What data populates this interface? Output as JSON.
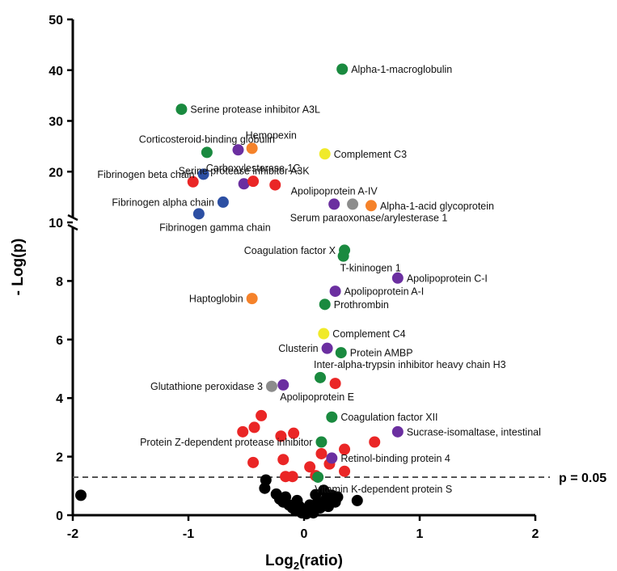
{
  "chart_data": {
    "type": "scatter",
    "xlabel": "Log",
    "xlabel_sub": "2",
    "xlabel_rest": "(ratio)",
    "ylabel": "- Log(p)",
    "xlim": [
      -2,
      2
    ],
    "xticks": [
      "-2",
      "-1",
      "0",
      "1",
      "2"
    ],
    "ylim_lower": [
      0,
      10
    ],
    "ylim_upper": [
      10,
      50
    ],
    "y_axis_break_at": 10,
    "yticks_lower": [
      "0",
      "2",
      "4",
      "6",
      "8",
      "10"
    ],
    "yticks_upper": [
      "20",
      "30",
      "40",
      "50"
    ],
    "threshold": {
      "y": 1.3,
      "label": "p = 0.05",
      "style": "dashed"
    },
    "grid": false,
    "colors": {
      "green": "#1a8a3f",
      "purple": "#6b2fa0",
      "orange": "#f5822a",
      "yellow": "#f0ea2a",
      "gray": "#8c8c8c",
      "blue": "#2c4fa3",
      "red": "#ea2626",
      "black": "#000000"
    },
    "labeled_points": [
      {
        "label": "Alpha-1-macroglobulin",
        "x": 0.33,
        "y": 40.2,
        "color": "green",
        "anchor": "right"
      },
      {
        "label": "Serine protease inhibitor A3L",
        "x": -1.06,
        "y": 32.3,
        "color": "green",
        "anchor": "right"
      },
      {
        "label": "Corticosteroid-binding globulin",
        "x": -0.84,
        "y": 23.8,
        "color": "green",
        "anchor": "above"
      },
      {
        "label": "",
        "x": -0.57,
        "y": 24.3,
        "color": "purple",
        "anchor": "none"
      },
      {
        "label": "Hemopexin",
        "x": -0.45,
        "y": 24.6,
        "color": "orange",
        "anchor": "above-right"
      },
      {
        "label": "Complement C3",
        "x": 0.18,
        "y": 23.5,
        "color": "yellow",
        "anchor": "right"
      },
      {
        "label": "Serine protease inhibitor A3K",
        "x": -0.52,
        "y": 17.6,
        "color": "purple",
        "anchor": "above"
      },
      {
        "label": "Fibrinogen beta chain",
        "x": -0.87,
        "y": 19.5,
        "color": "blue",
        "anchor": "left"
      },
      {
        "label": "Carboxylesterase 1C",
        "x": -0.44,
        "y": 18.1,
        "color": "red",
        "anchor": "above"
      },
      {
        "label": "",
        "x": -0.96,
        "y": 18.0,
        "color": "red",
        "anchor": "none"
      },
      {
        "label": "",
        "x": -0.25,
        "y": 17.4,
        "color": "red",
        "anchor": "none"
      },
      {
        "label": "Fibrinogen alpha chain",
        "x": -0.7,
        "y": 14.0,
        "color": "blue",
        "anchor": "left"
      },
      {
        "label": "Fibrinogen gamma chain",
        "x": -0.91,
        "y": 11.7,
        "color": "blue",
        "anchor": "below"
      },
      {
        "label": "Apolipoprotein A-IV",
        "x": 0.26,
        "y": 13.6,
        "color": "purple",
        "anchor": "above"
      },
      {
        "label": "Serum paraoxonase/arylesterase 1",
        "x": 0.42,
        "y": 13.6,
        "color": "gray",
        "anchor": "below"
      },
      {
        "label": "Alpha-1-acid glycoprotein",
        "x": 0.58,
        "y": 13.3,
        "color": "orange",
        "anchor": "right"
      },
      {
        "label": "Coagulation factor X",
        "x": 0.35,
        "y": 9.05,
        "color": "green",
        "anchor": "left"
      },
      {
        "label": "T-kininogen 1",
        "x": 0.34,
        "y": 8.85,
        "color": "green",
        "anchor": "below-right"
      },
      {
        "label": "Apolipoprotein C-I",
        "x": 0.81,
        "y": 8.1,
        "color": "purple",
        "anchor": "right"
      },
      {
        "label": "Apolipoprotein A-I",
        "x": 0.27,
        "y": 7.65,
        "color": "purple",
        "anchor": "right"
      },
      {
        "label": "Haptoglobin",
        "x": -0.45,
        "y": 7.4,
        "color": "orange",
        "anchor": "left"
      },
      {
        "label": "Prothrombin",
        "x": 0.18,
        "y": 7.2,
        "color": "green",
        "anchor": "right"
      },
      {
        "label": "Complement C4",
        "x": 0.17,
        "y": 6.2,
        "color": "yellow",
        "anchor": "right"
      },
      {
        "label": "Clusterin",
        "x": 0.2,
        "y": 5.7,
        "color": "purple",
        "anchor": "left"
      },
      {
        "label": "Protein AMBP",
        "x": 0.32,
        "y": 5.55,
        "color": "green",
        "anchor": "right"
      },
      {
        "label": "Inter-alpha-trypsin inhibitor heavy chain H3",
        "x": 0.14,
        "y": 4.7,
        "color": "green",
        "anchor": "above-right"
      },
      {
        "label": "",
        "x": 0.27,
        "y": 4.5,
        "color": "red",
        "anchor": "none"
      },
      {
        "label": "Glutathione peroxidase 3",
        "x": -0.28,
        "y": 4.4,
        "color": "gray",
        "anchor": "left"
      },
      {
        "label": "Apolipoprotein E",
        "x": -0.18,
        "y": 4.45,
        "color": "purple",
        "anchor": "below-right"
      },
      {
        "label": "Coagulation factor XII",
        "x": 0.24,
        "y": 3.35,
        "color": "green",
        "anchor": "right"
      },
      {
        "label": "Sucrase-isomaltase, intestinal",
        "x": 0.81,
        "y": 2.85,
        "color": "purple",
        "anchor": "right"
      },
      {
        "label": "Protein Z-dependent protease inhibitor",
        "x": 0.15,
        "y": 2.5,
        "color": "green",
        "anchor": "left"
      },
      {
        "label": "Retinol-binding protein 4",
        "x": 0.24,
        "y": 1.95,
        "color": "purple",
        "anchor": "right"
      },
      {
        "label": "Vitamin K-dependent protein S",
        "x": 0.12,
        "y": 1.3,
        "color": "green",
        "anchor": "below-right"
      }
    ],
    "unlabeled_points": [
      {
        "x": -0.37,
        "y": 3.4,
        "color": "red"
      },
      {
        "x": -0.43,
        "y": 3.0,
        "color": "red"
      },
      {
        "x": -0.53,
        "y": 2.85,
        "color": "red"
      },
      {
        "x": -0.2,
        "y": 2.7,
        "color": "red"
      },
      {
        "x": -0.09,
        "y": 2.8,
        "color": "red"
      },
      {
        "x": 0.35,
        "y": 2.25,
        "color": "red"
      },
      {
        "x": 0.61,
        "y": 2.5,
        "color": "red"
      },
      {
        "x": 0.15,
        "y": 2.1,
        "color": "red"
      },
      {
        "x": -0.44,
        "y": 1.8,
        "color": "red"
      },
      {
        "x": -0.18,
        "y": 1.9,
        "color": "red"
      },
      {
        "x": 0.05,
        "y": 1.65,
        "color": "red"
      },
      {
        "x": 0.35,
        "y": 1.5,
        "color": "red"
      },
      {
        "x": -0.16,
        "y": 1.32,
        "color": "red"
      },
      {
        "x": -0.1,
        "y": 1.32,
        "color": "red"
      },
      {
        "x": 0.1,
        "y": 1.35,
        "color": "red"
      },
      {
        "x": 0.22,
        "y": 1.75,
        "color": "red"
      },
      {
        "x": -1.93,
        "y": 0.68,
        "color": "black"
      },
      {
        "x": -0.33,
        "y": 1.2,
        "color": "black"
      },
      {
        "x": -0.34,
        "y": 0.92,
        "color": "black"
      },
      {
        "x": 0.46,
        "y": 0.5,
        "color": "black"
      },
      {
        "x": -0.24,
        "y": 0.72,
        "color": "black"
      },
      {
        "x": -0.21,
        "y": 0.55,
        "color": "black"
      },
      {
        "x": -0.18,
        "y": 0.45,
        "color": "black"
      },
      {
        "x": -0.16,
        "y": 0.62,
        "color": "black"
      },
      {
        "x": -0.13,
        "y": 0.35,
        "color": "black"
      },
      {
        "x": -0.1,
        "y": 0.25,
        "color": "black"
      },
      {
        "x": -0.07,
        "y": 0.15,
        "color": "black"
      },
      {
        "x": -0.04,
        "y": 0.3,
        "color": "black"
      },
      {
        "x": -0.02,
        "y": 0.08,
        "color": "black"
      },
      {
        "x": 0.0,
        "y": 0.2,
        "color": "black"
      },
      {
        "x": 0.02,
        "y": 0.05,
        "color": "black"
      },
      {
        "x": 0.05,
        "y": 0.35,
        "color": "black"
      },
      {
        "x": 0.07,
        "y": 0.12,
        "color": "black"
      },
      {
        "x": 0.1,
        "y": 0.7,
        "color": "black"
      },
      {
        "x": 0.12,
        "y": 0.45,
        "color": "black"
      },
      {
        "x": 0.14,
        "y": 0.25,
        "color": "black"
      },
      {
        "x": 0.17,
        "y": 0.85,
        "color": "black"
      },
      {
        "x": 0.19,
        "y": 0.55,
        "color": "black"
      },
      {
        "x": 0.21,
        "y": 0.3,
        "color": "black"
      },
      {
        "x": 0.24,
        "y": 0.68,
        "color": "black"
      },
      {
        "x": 0.27,
        "y": 0.45,
        "color": "black"
      },
      {
        "x": 0.29,
        "y": 0.62,
        "color": "black"
      },
      {
        "x": 0.08,
        "y": 0.08,
        "color": "black"
      },
      {
        "x": -0.06,
        "y": 0.5,
        "color": "black"
      }
    ]
  }
}
